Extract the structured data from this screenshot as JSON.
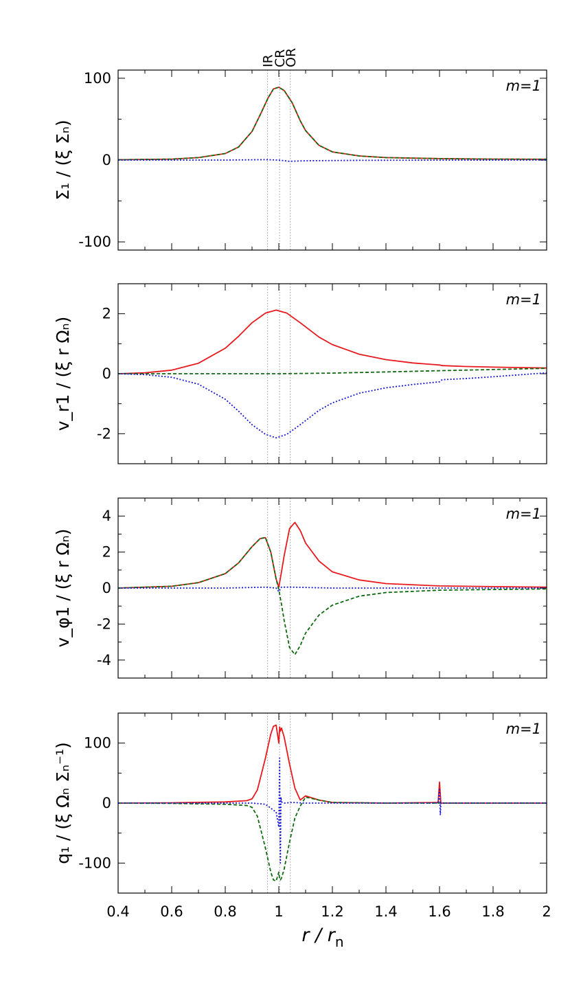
{
  "xlabel": "r / r",
  "xlabel_sub": "n",
  "xticks": [
    0.4,
    0.6,
    0.8,
    1.0,
    1.2,
    1.4,
    1.6,
    1.8,
    2.0
  ],
  "xtick_labels": [
    "0.4",
    "0.6",
    "0.8",
    "1",
    "1.2",
    "1.4",
    "1.6",
    "1.8",
    "2"
  ],
  "resonances": [
    {
      "label": "IR",
      "x": 0.958
    },
    {
      "label": "CR",
      "x": 1.003
    },
    {
      "label": "OR",
      "x": 1.043
    }
  ],
  "colors": {
    "red": "#e8191d",
    "green": "#0d6b0d",
    "blue": "#1515d8",
    "vline": "#9a9a9a"
  },
  "chart_data": [
    {
      "type": "line",
      "panel_label": "m=1",
      "ylabel": "Σ₁ / (ξ Σₙ)",
      "ylim": [
        -110,
        110
      ],
      "yticks": [
        -100,
        0,
        100
      ],
      "ytick_labels": [
        "-100",
        "0",
        "100"
      ],
      "yminor": [
        -50,
        50
      ],
      "series": [
        {
          "color": "red",
          "style": "solid",
          "x": [
            0.4,
            0.6,
            0.7,
            0.8,
            0.85,
            0.9,
            0.93,
            0.96,
            0.98,
            1.0,
            1.02,
            1.05,
            1.08,
            1.1,
            1.15,
            1.2,
            1.3,
            1.4,
            1.6,
            1.8,
            2.0
          ],
          "y": [
            0.4,
            1.2,
            3,
            8,
            16,
            35,
            55,
            76,
            87,
            89,
            85,
            70,
            48,
            36,
            18,
            10,
            5,
            3,
            1.8,
            1.2,
            1
          ]
        },
        {
          "color": "green",
          "style": "dashed",
          "x": [
            0.4,
            0.6,
            0.7,
            0.8,
            0.85,
            0.9,
            0.93,
            0.96,
            0.98,
            1.0,
            1.02,
            1.05,
            1.08,
            1.1,
            1.15,
            1.2,
            1.3,
            1.4,
            1.6,
            1.8,
            2.0
          ],
          "y": [
            0.4,
            1.2,
            3,
            8,
            16,
            35,
            55,
            76,
            87,
            89,
            85,
            70,
            48,
            36,
            18,
            10,
            5,
            3,
            1.8,
            1.2,
            1
          ]
        },
        {
          "color": "blue",
          "style": "dotted",
          "x": [
            0.4,
            0.8,
            0.95,
            1.0,
            1.04,
            1.1,
            1.3,
            1.6,
            2.0
          ],
          "y": [
            0,
            0,
            0.5,
            0,
            -1.5,
            -0.8,
            -0.3,
            -0.1,
            0
          ]
        }
      ]
    },
    {
      "type": "line",
      "panel_label": "m=1",
      "ylabel": "v_r1 / (ξ r Ωₙ)",
      "ylim": [
        -3,
        3
      ],
      "yticks": [
        -2,
        0,
        2
      ],
      "ytick_labels": [
        "-2",
        "0",
        "2"
      ],
      "yminor": [
        -3,
        -1,
        1,
        3
      ],
      "series": [
        {
          "color": "red",
          "style": "solid",
          "x": [
            0.4,
            0.5,
            0.6,
            0.7,
            0.8,
            0.85,
            0.9,
            0.95,
            0.99,
            1.03,
            1.08,
            1.15,
            1.2,
            1.3,
            1.4,
            1.5,
            1.6,
            1.61,
            1.7,
            1.8,
            2.0
          ],
          "y": [
            0,
            0.03,
            0.12,
            0.35,
            0.85,
            1.25,
            1.7,
            2.02,
            2.12,
            2.02,
            1.7,
            1.22,
            0.97,
            0.65,
            0.47,
            0.36,
            0.29,
            0.27,
            0.24,
            0.22,
            0.19
          ]
        },
        {
          "color": "green",
          "style": "dashed",
          "x": [
            0.4,
            0.9,
            1.0,
            1.2,
            1.4,
            1.6,
            1.8,
            2.0
          ],
          "y": [
            0,
            0,
            0,
            0.02,
            0.06,
            0.1,
            0.14,
            0.18
          ]
        },
        {
          "color": "blue",
          "style": "dotted",
          "x": [
            0.4,
            0.5,
            0.6,
            0.7,
            0.8,
            0.85,
            0.9,
            0.95,
            0.99,
            1.03,
            1.08,
            1.15,
            1.2,
            1.3,
            1.4,
            1.5,
            1.6,
            1.61,
            1.7,
            1.8,
            2.0
          ],
          "y": [
            0,
            -0.03,
            -0.12,
            -0.35,
            -0.85,
            -1.25,
            -1.7,
            -2.02,
            -2.14,
            -2.02,
            -1.7,
            -1.22,
            -0.97,
            -0.65,
            -0.47,
            -0.36,
            -0.27,
            -0.2,
            -0.16,
            -0.1,
            0.03
          ]
        }
      ]
    },
    {
      "type": "line",
      "panel_label": "m=1",
      "ylabel": "v_φ1 / (ξ r Ωₙ)",
      "ylim": [
        -5,
        5
      ],
      "yticks": [
        -4,
        -2,
        0,
        2,
        4
      ],
      "ytick_labels": [
        "-4",
        "-2",
        "0",
        "2",
        "4"
      ],
      "yminor": [
        -5,
        -3,
        -1,
        1,
        3,
        5
      ],
      "series": [
        {
          "color": "red",
          "style": "solid",
          "x": [
            0.4,
            0.6,
            0.7,
            0.8,
            0.85,
            0.9,
            0.93,
            0.95,
            0.97,
            0.99,
            1.0,
            1.01,
            1.02,
            1.04,
            1.06,
            1.08,
            1.1,
            1.15,
            1.2,
            1.3,
            1.4,
            1.6,
            1.8,
            2.0
          ],
          "y": [
            0,
            0.1,
            0.3,
            0.8,
            1.4,
            2.3,
            2.75,
            2.8,
            2.0,
            0.5,
            0.05,
            0.9,
            1.8,
            3.3,
            3.65,
            3.2,
            2.5,
            1.5,
            0.9,
            0.45,
            0.25,
            0.12,
            0.08,
            0.05
          ]
        },
        {
          "color": "green",
          "style": "dashed",
          "x": [
            0.4,
            0.6,
            0.7,
            0.8,
            0.85,
            0.9,
            0.93,
            0.95,
            0.97,
            0.99,
            1.0,
            1.01,
            1.02,
            1.04,
            1.06,
            1.08,
            1.1,
            1.15,
            1.2,
            1.3,
            1.4,
            1.6,
            1.8,
            2.0
          ],
          "y": [
            0,
            0.1,
            0.3,
            0.8,
            1.4,
            2.3,
            2.75,
            2.8,
            2.0,
            0.5,
            -0.1,
            -0.9,
            -1.8,
            -3.3,
            -3.7,
            -3.2,
            -2.5,
            -1.5,
            -0.95,
            -0.45,
            -0.25,
            -0.12,
            -0.08,
            -0.05
          ]
        },
        {
          "color": "blue",
          "style": "dotted",
          "x": [
            0.4,
            0.8,
            0.95,
            0.99,
            1.0,
            1.01,
            1.05,
            1.2,
            2.0
          ],
          "y": [
            0,
            0,
            0.05,
            0,
            -0.2,
            0.05,
            0.05,
            0,
            0
          ]
        }
      ]
    },
    {
      "type": "line",
      "panel_label": "m=1",
      "ylabel": "q₁ / (ξ Ωₙ Σₙ⁻¹)",
      "ylim": [
        -150,
        150
      ],
      "yticks": [
        -100,
        0,
        100
      ],
      "ytick_labels": [
        "-100",
        "0",
        "100"
      ],
      "yminor": [
        -150,
        -50,
        50,
        150
      ],
      "series": [
        {
          "color": "red",
          "style": "solid",
          "x": [
            0.4,
            0.6,
            0.8,
            0.88,
            0.9,
            0.92,
            0.95,
            0.97,
            0.98,
            0.99,
            1.0,
            1.003,
            1.006,
            1.01,
            1.02,
            1.04,
            1.06,
            1.08,
            1.1,
            1.15,
            1.2,
            1.4,
            1.595,
            1.6,
            1.605,
            1.8,
            2.0
          ],
          "y": [
            0,
            0.5,
            2,
            4,
            7,
            22,
            75,
            115,
            128,
            130,
            100,
            127,
            120,
            125,
            110,
            65,
            25,
            5,
            12,
            5,
            1,
            0,
            1,
            35,
            0,
            0,
            0
          ]
        },
        {
          "color": "green",
          "style": "dashed",
          "x": [
            0.4,
            0.6,
            0.8,
            0.88,
            0.9,
            0.92,
            0.95,
            0.97,
            0.98,
            0.99,
            1.0,
            1.003,
            1.006,
            1.01,
            1.02,
            1.04,
            1.06,
            1.08,
            1.1,
            1.15,
            1.2,
            1.4,
            1.6,
            2.0
          ],
          "y": [
            0,
            -0.5,
            -2,
            -4,
            -7,
            -22,
            -75,
            -115,
            -128,
            -130,
            -115,
            -127,
            -128,
            -125,
            -110,
            -65,
            -25,
            -5,
            10,
            5,
            1,
            0,
            0,
            0
          ]
        },
        {
          "color": "blue",
          "style": "dotted",
          "x": [
            0.4,
            0.9,
            0.95,
            0.99,
            1.0,
            1.003,
            1.004,
            1.006,
            1.008,
            1.01,
            1.02,
            1.05,
            1.1,
            1.595,
            1.6,
            1.603,
            1.605,
            1.61,
            2.0
          ],
          "y": [
            0,
            0,
            -2,
            -15,
            -40,
            75,
            -20,
            -100,
            10,
            2,
            0,
            1,
            0,
            0,
            25,
            -20,
            0,
            0,
            0
          ]
        }
      ]
    }
  ]
}
